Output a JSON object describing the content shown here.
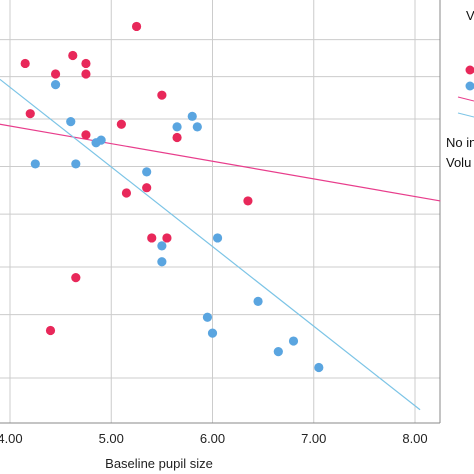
{
  "chart_data": {
    "type": "scatter",
    "xlabel": "Baseline pupil size",
    "ylabel": "",
    "x_ticks": [
      "4.00",
      "5.00",
      "6.00",
      "7.00",
      "8.00"
    ],
    "x_tick_values": [
      4,
      5,
      6,
      7,
      8
    ],
    "xlim": [
      3.9,
      8.25
    ],
    "grid": true,
    "legend_labels": [
      "V",
      "No in",
      "Volu"
    ],
    "colors": {
      "red": "#e8285a",
      "blue": "#5aa5e0",
      "red_line": "#e83d8c",
      "blue_line": "#7cc4e6",
      "grid": "#cccccc"
    },
    "series": [
      {
        "color_key": "red",
        "points": [
          [
            5.25,
            8.75
          ],
          [
            4.15,
            8.05
          ],
          [
            4.62,
            8.2
          ],
          [
            4.75,
            8.05
          ],
          [
            4.45,
            7.85
          ],
          [
            4.75,
            7.85
          ],
          [
            5.5,
            7.45
          ],
          [
            4.2,
            7.1
          ],
          [
            5.1,
            6.9
          ],
          [
            4.75,
            6.7
          ],
          [
            5.65,
            6.65
          ],
          [
            5.15,
            5.6
          ],
          [
            5.35,
            5.7
          ],
          [
            6.35,
            5.45
          ],
          [
            5.4,
            4.75
          ],
          [
            5.55,
            4.75
          ],
          [
            4.65,
            4.0
          ],
          [
            4.4,
            3.0
          ]
        ]
      },
      {
        "color_key": "blue",
        "points": [
          [
            4.45,
            7.65
          ],
          [
            5.8,
            7.05
          ],
          [
            4.6,
            6.95
          ],
          [
            5.65,
            6.85
          ],
          [
            5.85,
            6.85
          ],
          [
            4.9,
            6.6
          ],
          [
            4.85,
            6.55
          ],
          [
            4.25,
            6.15
          ],
          [
            4.65,
            6.15
          ],
          [
            5.35,
            6.0
          ],
          [
            6.05,
            4.75
          ],
          [
            5.5,
            4.6
          ],
          [
            5.5,
            4.3
          ],
          [
            6.45,
            3.55
          ],
          [
            5.95,
            3.25
          ],
          [
            6.0,
            2.95
          ],
          [
            6.8,
            2.8
          ],
          [
            6.65,
            2.6
          ],
          [
            7.05,
            2.3
          ]
        ]
      }
    ],
    "fit_lines": [
      {
        "color_key": "red_line",
        "x": [
          3.9,
          8.25
        ],
        "y": [
          6.9,
          5.45
        ]
      },
      {
        "color_key": "blue_line",
        "x": [
          3.9,
          8.05
        ],
        "y": [
          7.75,
          1.5
        ]
      }
    ],
    "y_grid_values": [
      8.5,
      7.8,
      7.0,
      6.1,
      5.2,
      4.2,
      3.3,
      2.1
    ]
  }
}
